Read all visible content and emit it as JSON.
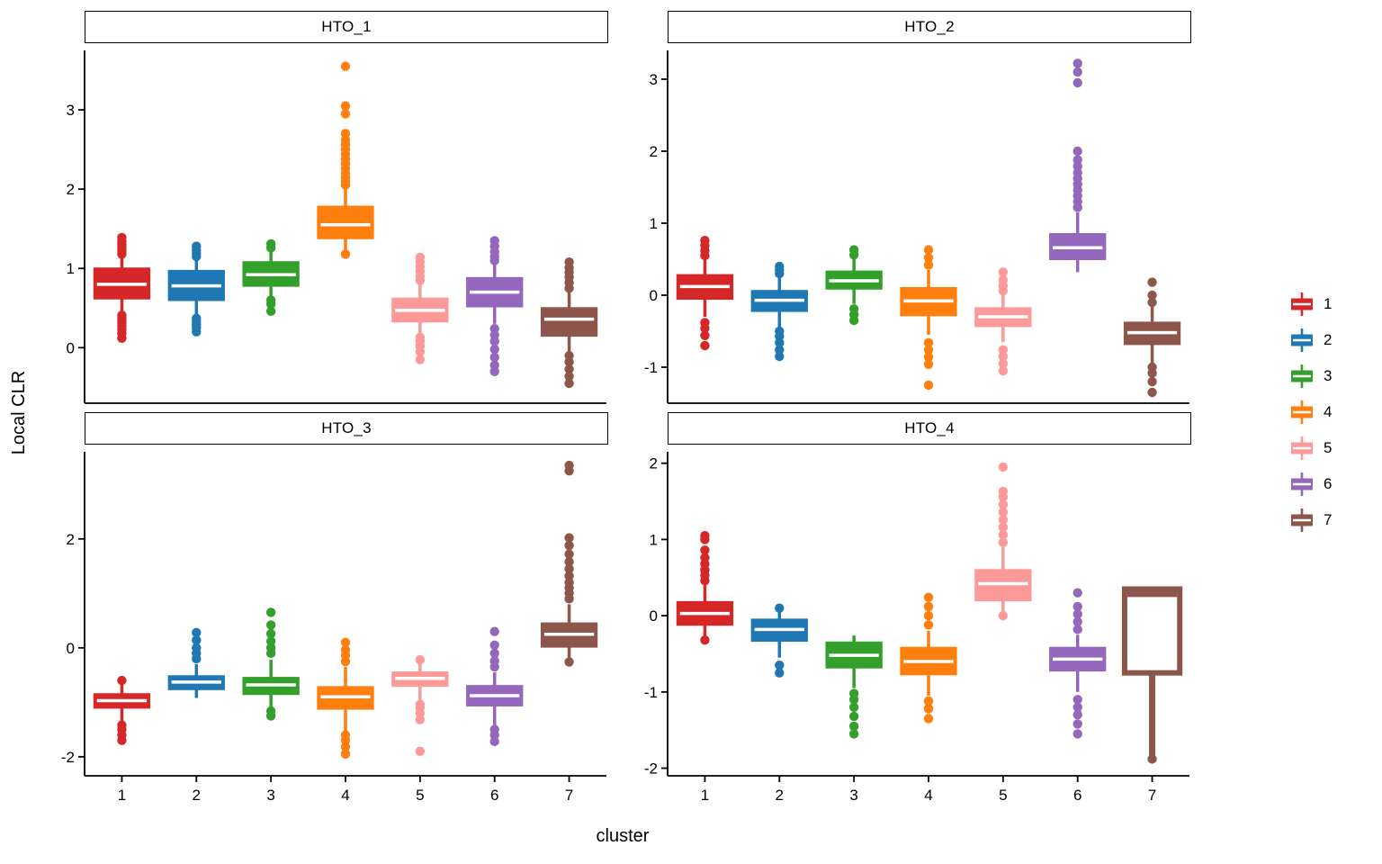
{
  "chart_data": {
    "type": "boxplot",
    "title": "",
    "xlabel": "cluster",
    "ylabel": "Local CLR",
    "categories": [
      "1",
      "2",
      "3",
      "4",
      "5",
      "6",
      "7"
    ],
    "legend": {
      "position": "right",
      "labels": [
        "1",
        "2",
        "3",
        "4",
        "5",
        "6",
        "7"
      ]
    },
    "palette": {
      "1": "#D62728",
      "2": "#1F78B4",
      "3": "#33A02C",
      "4": "#FF7F0E",
      "5": "#FB9A99",
      "6": "#9467BD",
      "7": "#8C564B"
    },
    "facets": [
      {
        "title": "HTO_1",
        "y_ticks": [
          0,
          1,
          2,
          3
        ],
        "y_domain": [
          -0.7,
          3.75
        ],
        "boxes": [
          {
            "cluster": "1",
            "q1": 0.62,
            "median": 0.8,
            "q3": 1.0,
            "whisker_low": 0.45,
            "whisker_high": 1.15,
            "outliers": [
              0.12,
              0.18,
              0.23,
              0.27,
              0.31,
              0.35,
              0.38,
              0.41,
              1.18,
              1.22,
              1.26,
              1.3,
              1.34,
              1.39
            ]
          },
          {
            "cluster": "2",
            "q1": 0.6,
            "median": 0.78,
            "q3": 0.97,
            "whisker_low": 0.42,
            "whisker_high": 1.12,
            "outliers": [
              0.2,
              0.25,
              0.29,
              0.33,
              0.37,
              1.15,
              1.19,
              1.23,
              1.28
            ]
          },
          {
            "cluster": "3",
            "q1": 0.78,
            "median": 0.92,
            "q3": 1.08,
            "whisker_low": 0.62,
            "whisker_high": 1.22,
            "outliers": [
              0.46,
              0.55,
              0.6,
              1.26,
              1.31
            ]
          },
          {
            "cluster": "4",
            "q1": 1.38,
            "median": 1.55,
            "q3": 1.78,
            "whisker_low": 1.2,
            "whisker_high": 2.0,
            "outliers": [
              1.18,
              2.05,
              2.1,
              2.15,
              2.2,
              2.26,
              2.32,
              2.38,
              2.44,
              2.5,
              2.56,
              2.62,
              2.7,
              2.95,
              3.05,
              3.55
            ]
          },
          {
            "cluster": "5",
            "q1": 0.33,
            "median": 0.47,
            "q3": 0.62,
            "whisker_low": 0.18,
            "whisker_high": 0.8,
            "outliers": [
              -0.15,
              -0.05,
              0.02,
              0.08,
              0.13,
              0.85,
              0.9,
              0.96,
              1.02,
              1.08,
              1.14
            ]
          },
          {
            "cluster": "6",
            "q1": 0.52,
            "median": 0.7,
            "q3": 0.88,
            "whisker_low": 0.3,
            "whisker_high": 1.05,
            "outliers": [
              -0.3,
              -0.22,
              -0.12,
              -0.02,
              0.08,
              0.16,
              0.24,
              1.1,
              1.15,
              1.21,
              1.28,
              1.35
            ]
          },
          {
            "cluster": "7",
            "q1": 0.15,
            "median": 0.36,
            "q3": 0.5,
            "whisker_low": -0.05,
            "whisker_high": 0.7,
            "outliers": [
              -0.45,
              -0.36,
              -0.27,
              -0.18,
              -0.1,
              0.75,
              0.82,
              0.89,
              0.95,
              1.01,
              1.08
            ]
          }
        ]
      },
      {
        "title": "HTO_2",
        "y_ticks": [
          -1,
          0,
          1,
          2,
          3
        ],
        "y_domain": [
          -1.5,
          3.4
        ],
        "boxes": [
          {
            "cluster": "1",
            "q1": -0.05,
            "median": 0.12,
            "q3": 0.28,
            "whisker_low": -0.3,
            "whisker_high": 0.5,
            "outliers": [
              -0.7,
              -0.56,
              -0.46,
              -0.38,
              0.55,
              0.62,
              0.69,
              0.76
            ]
          },
          {
            "cluster": "2",
            "q1": -0.22,
            "median": -0.07,
            "q3": 0.06,
            "whisker_low": -0.45,
            "whisker_high": 0.25,
            "outliers": [
              -0.85,
              -0.76,
              -0.66,
              -0.57,
              -0.5,
              0.3,
              0.35,
              0.4
            ]
          },
          {
            "cluster": "3",
            "q1": 0.09,
            "median": 0.2,
            "q3": 0.33,
            "whisker_low": -0.12,
            "whisker_high": 0.5,
            "outliers": [
              -0.35,
              -0.27,
              -0.19,
              0.56,
              0.63
            ]
          },
          {
            "cluster": "4",
            "q1": -0.28,
            "median": -0.08,
            "q3": 0.1,
            "whisker_low": -0.55,
            "whisker_high": 0.35,
            "outliers": [
              -1.25,
              -0.96,
              -0.86,
              -0.76,
              -0.66,
              0.42,
              0.52,
              0.63
            ]
          },
          {
            "cluster": "5",
            "q1": -0.43,
            "median": -0.3,
            "q3": -0.18,
            "whisker_low": -0.65,
            "whisker_high": 0.0,
            "outliers": [
              -1.05,
              -0.95,
              -0.85,
              -0.76,
              0.06,
              0.13,
              0.21,
              0.32
            ]
          },
          {
            "cluster": "6",
            "q1": 0.5,
            "median": 0.66,
            "q3": 0.85,
            "whisker_low": 0.32,
            "whisker_high": 1.15,
            "outliers": [
              1.22,
              1.3,
              1.38,
              1.46,
              1.54,
              1.62,
              1.7,
              1.79,
              1.88,
              2.0,
              2.95,
              3.1,
              3.22
            ]
          },
          {
            "cluster": "7",
            "q1": -0.68,
            "median": -0.52,
            "q3": -0.38,
            "whisker_low": -0.95,
            "whisker_high": -0.15,
            "outliers": [
              -1.35,
              -1.2,
              -1.08,
              -1.0,
              -0.1,
              0.0,
              0.18
            ]
          }
        ]
      },
      {
        "title": "HTO_3",
        "y_ticks": [
          -2,
          0,
          2
        ],
        "y_domain": [
          -2.35,
          3.6
        ],
        "boxes": [
          {
            "cluster": "1",
            "q1": -1.1,
            "median": -0.97,
            "q3": -0.85,
            "whisker_low": -1.35,
            "whisker_high": -0.65,
            "outliers": [
              -1.7,
              -1.6,
              -1.5,
              -1.42,
              -0.6
            ]
          },
          {
            "cluster": "2",
            "q1": -0.76,
            "median": -0.63,
            "q3": -0.52,
            "whisker_low": -0.92,
            "whisker_high": -0.3,
            "outliers": [
              -0.2,
              -0.1,
              0.0,
              0.14,
              0.28
            ]
          },
          {
            "cluster": "3",
            "q1": -0.85,
            "median": -0.68,
            "q3": -0.55,
            "whisker_low": -1.1,
            "whisker_high": -0.22,
            "outliers": [
              -1.25,
              -1.16,
              -0.1,
              0.0,
              0.12,
              0.26,
              0.42,
              0.65
            ]
          },
          {
            "cluster": "4",
            "q1": -1.12,
            "median": -0.9,
            "q3": -0.72,
            "whisker_low": -1.52,
            "whisker_high": -0.35,
            "outliers": [
              -1.95,
              -1.82,
              -1.7,
              -1.6,
              -0.25,
              -0.14,
              -0.04,
              0.1
            ]
          },
          {
            "cluster": "5",
            "q1": -0.7,
            "median": -0.56,
            "q3": -0.45,
            "whisker_low": -0.98,
            "whisker_high": -0.28,
            "outliers": [
              -1.9,
              -1.32,
              -1.2,
              -1.1,
              -1.04,
              -0.22
            ]
          },
          {
            "cluster": "6",
            "q1": -1.06,
            "median": -0.88,
            "q3": -0.7,
            "whisker_low": -1.42,
            "whisker_high": -0.45,
            "outliers": [
              -1.72,
              -1.6,
              -1.5,
              -0.35,
              -0.24,
              -0.1,
              0.05,
              0.3
            ]
          },
          {
            "cluster": "7",
            "q1": 0.02,
            "median": 0.25,
            "q3": 0.45,
            "whisker_low": -0.2,
            "whisker_high": 0.8,
            "outliers": [
              -0.26,
              0.9,
              1.0,
              1.1,
              1.2,
              1.32,
              1.45,
              1.58,
              1.72,
              1.88,
              2.02,
              3.25,
              3.35
            ]
          }
        ]
      },
      {
        "title": "HTO_4",
        "y_ticks": [
          -2,
          -1,
          0,
          1,
          2
        ],
        "y_domain": [
          -2.1,
          2.15
        ],
        "boxes": [
          {
            "cluster": "1",
            "q1": -0.12,
            "median": 0.03,
            "q3": 0.18,
            "whisker_low": -0.3,
            "whisker_high": 0.4,
            "outliers": [
              -0.32,
              0.46,
              0.53,
              0.6,
              0.68,
              0.76,
              0.86,
              1.0,
              1.05
            ]
          },
          {
            "cluster": "2",
            "q1": -0.33,
            "median": -0.18,
            "q3": -0.05,
            "whisker_low": -0.55,
            "whisker_high": 0.06,
            "outliers": [
              -0.75,
              -0.65,
              0.1
            ]
          },
          {
            "cluster": "3",
            "q1": -0.68,
            "median": -0.52,
            "q3": -0.35,
            "whisker_low": -0.95,
            "whisker_high": -0.26,
            "outliers": [
              -1.55,
              -1.45,
              -1.32,
              -1.2,
              -1.1,
              -1.02
            ]
          },
          {
            "cluster": "4",
            "q1": -0.77,
            "median": -0.6,
            "q3": -0.42,
            "whisker_low": -1.05,
            "whisker_high": -0.2,
            "outliers": [
              -1.35,
              -1.22,
              -1.12,
              -0.12,
              0.0,
              0.12,
              0.24
            ]
          },
          {
            "cluster": "5",
            "q1": 0.2,
            "median": 0.42,
            "q3": 0.6,
            "whisker_low": 0.02,
            "whisker_high": 0.9,
            "outliers": [
              0.0,
              0.96,
              1.06,
              1.16,
              1.26,
              1.36,
              1.46,
              1.56,
              1.63,
              1.95
            ]
          },
          {
            "cluster": "6",
            "q1": -0.72,
            "median": -0.57,
            "q3": -0.42,
            "whisker_low": -1.0,
            "whisker_high": -0.25,
            "outliers": [
              -1.55,
              -1.42,
              -1.3,
              -1.2,
              -1.1,
              -0.18,
              -0.08,
              0.02,
              0.12,
              0.3
            ]
          },
          {
            "cluster": "7",
            "q1": -0.75,
            "median": 0.28,
            "q3": 0.35,
            "whisker_low": -1.85,
            "whisker_high": 0.35,
            "hollow": true,
            "outliers": [
              -1.88
            ]
          }
        ]
      }
    ]
  }
}
